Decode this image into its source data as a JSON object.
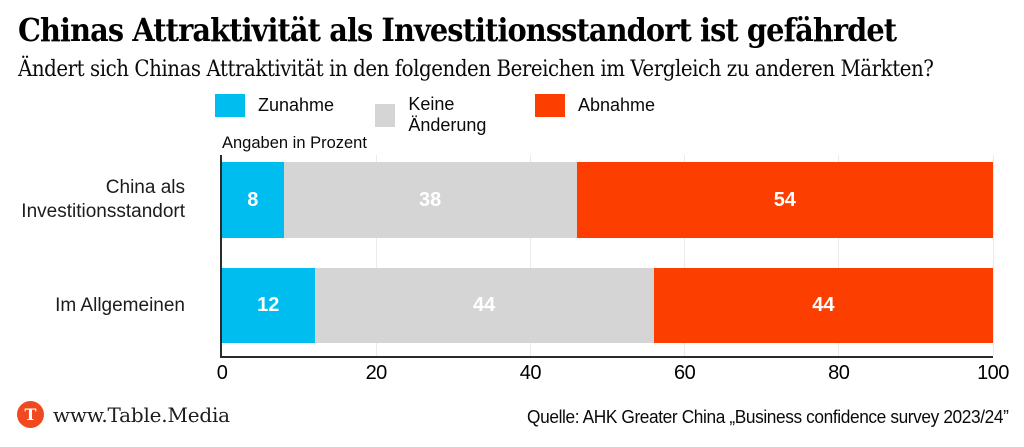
{
  "header": {
    "title": "Chinas Attraktivität als Investitionsstandort ist gefährdet",
    "subtitle": "Ändert sich Chinas Attraktivität in den folgenden Bereichen im Vergleich zu anderen Märkten?"
  },
  "chart_data": {
    "type": "bar",
    "stacked": true,
    "orientation": "horizontal",
    "note": "Angaben in Prozent",
    "categories": [
      "China als\nInvestitionsstandort",
      "Im Allgemeinen"
    ],
    "series": [
      {
        "name": "Zunahme",
        "color": "#00bdf0",
        "values": [
          8,
          12
        ]
      },
      {
        "name": "Keine Änderung",
        "color": "#d5d5d5",
        "values": [
          38,
          44
        ]
      },
      {
        "name": "Abnahme",
        "color": "#fc3e00",
        "values": [
          54,
          44
        ]
      }
    ],
    "x_ticks": [
      0,
      20,
      40,
      60,
      80,
      100
    ],
    "xlim": [
      0,
      100
    ],
    "grid": true,
    "legend_position": "top"
  },
  "footer": {
    "logo_letter": "T",
    "logo_color": "#f1491f",
    "brand": "www.Table.Media",
    "source": "Quelle: AHK Greater China „Business confidence survey 2023/24”"
  }
}
